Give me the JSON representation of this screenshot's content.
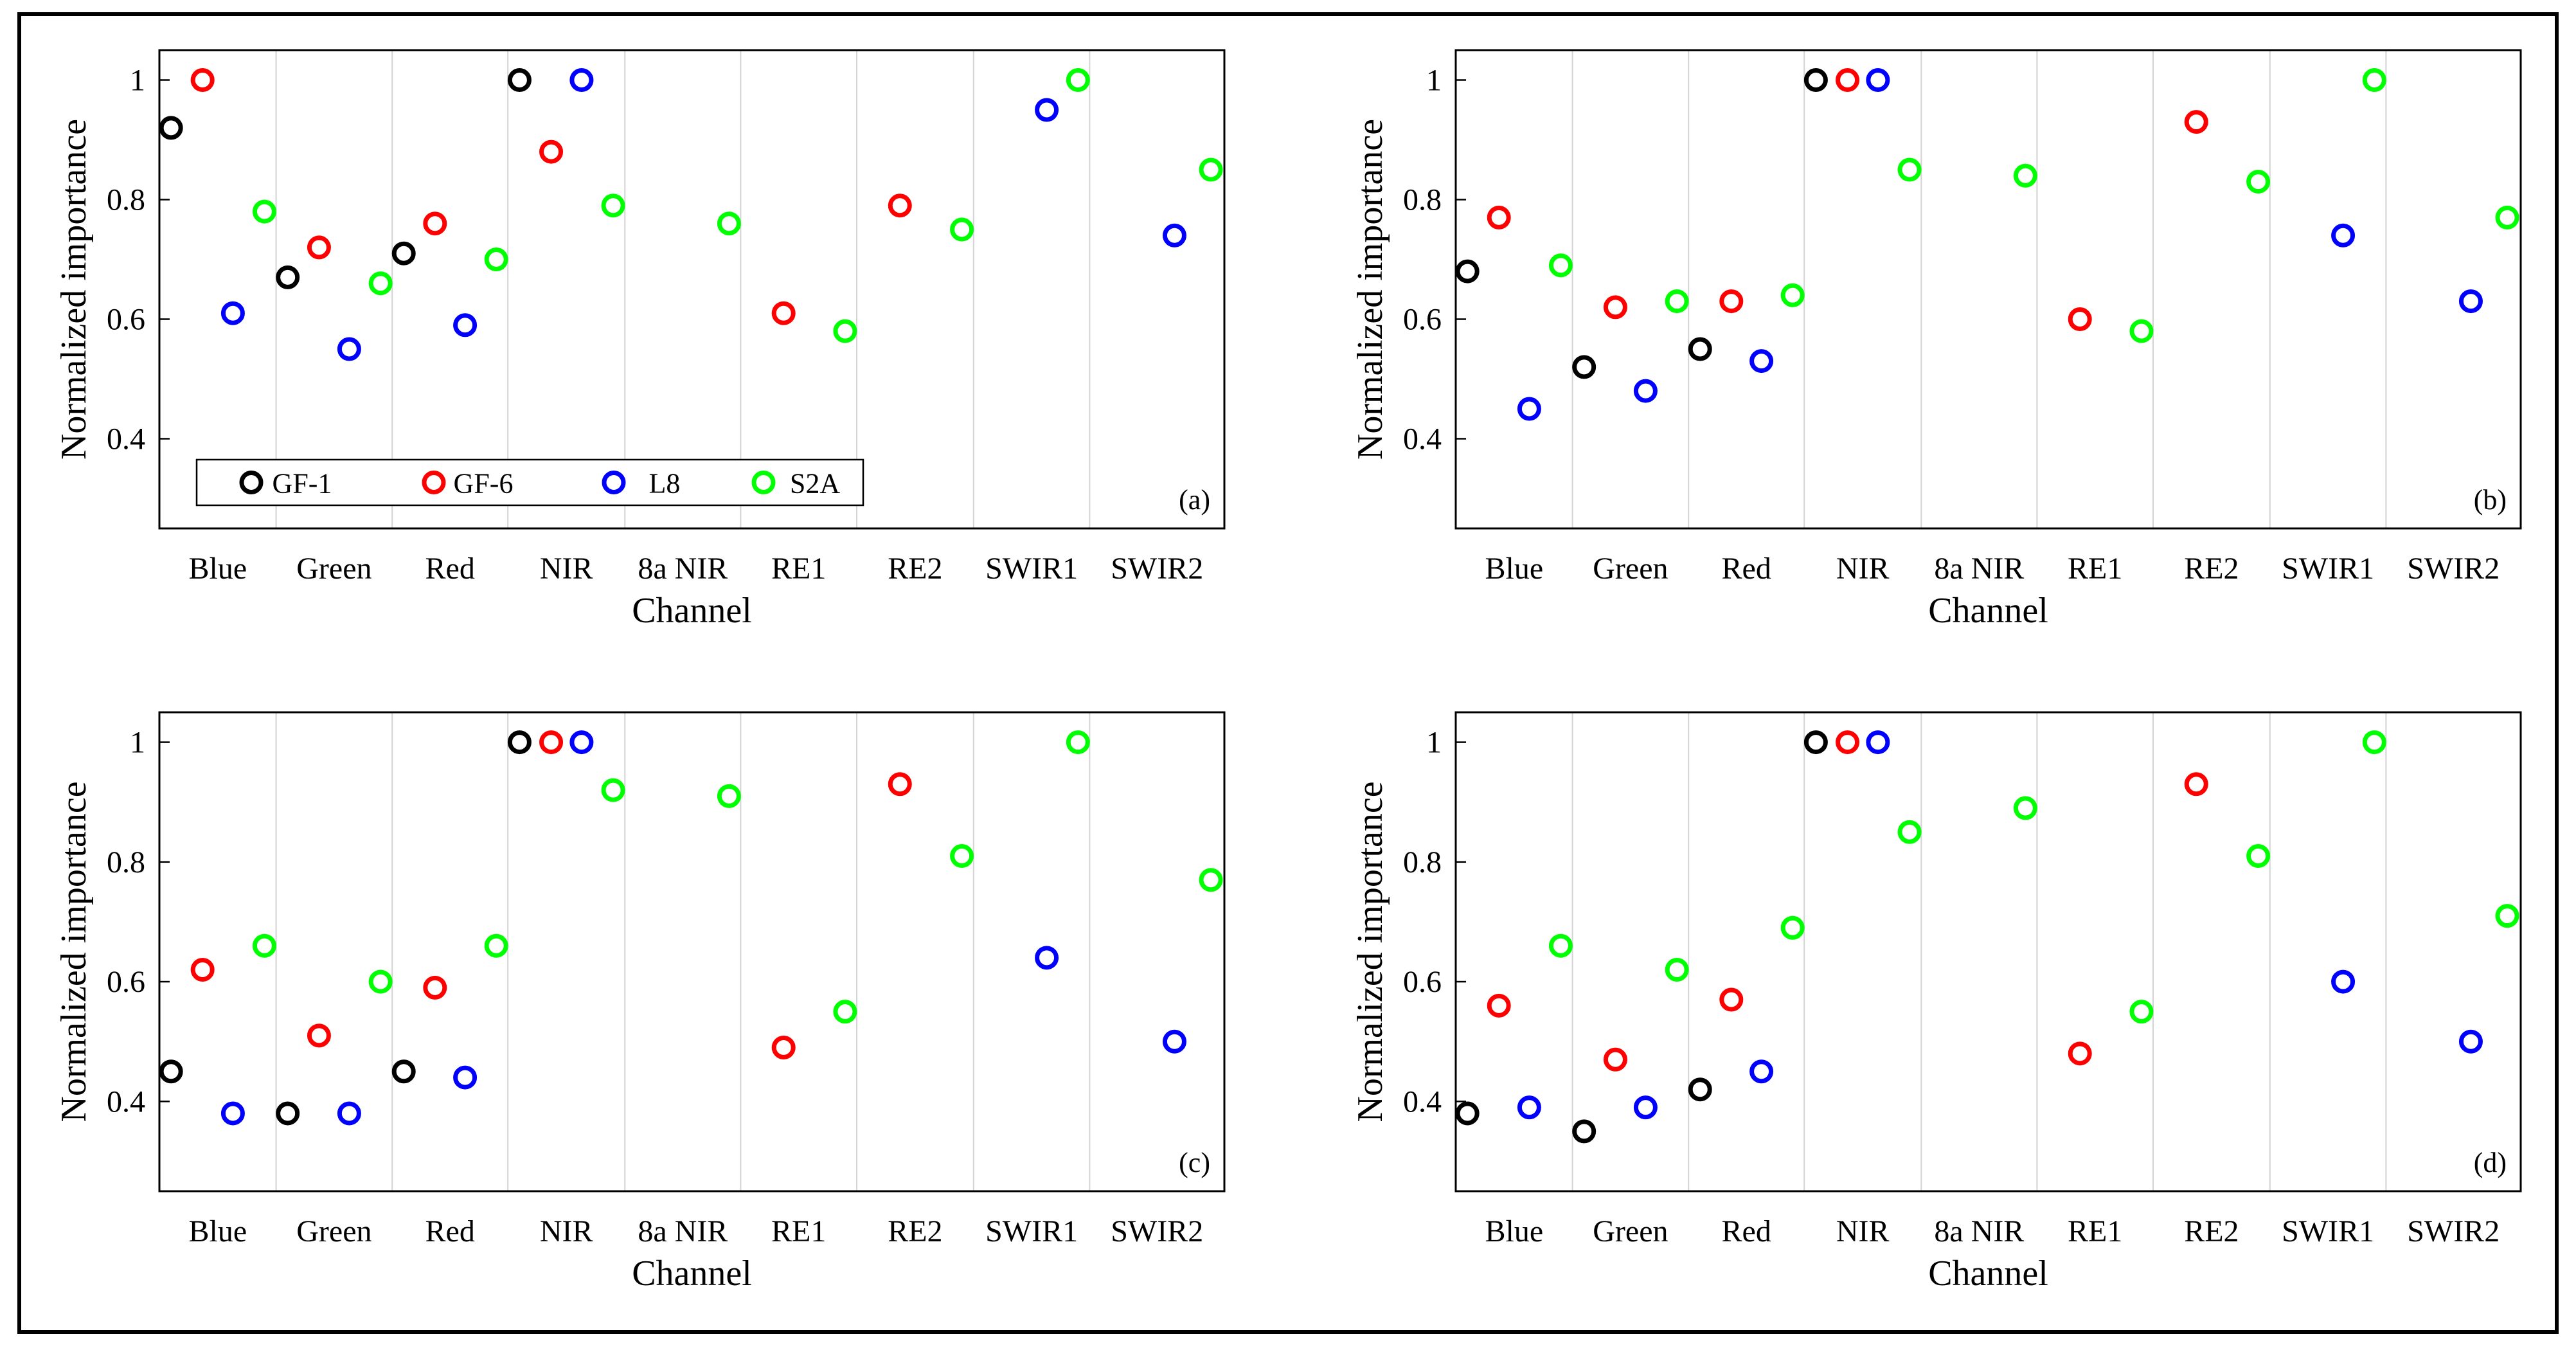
{
  "figure": {
    "frame_color": "#000000",
    "background": "#ffffff"
  },
  "series_styles": [
    {
      "name": "GF-1",
      "color": "#000000"
    },
    {
      "name": "GF-6",
      "color": "#ff0000"
    },
    {
      "name": "L8",
      "color": "#0000ff"
    },
    {
      "name": "S2A",
      "color": "#00ff00"
    }
  ],
  "chart_data": [
    {
      "type": "scatter",
      "panel": "(a)",
      "xlabel": "Channel",
      "ylabel": "Normalized importance",
      "categories": [
        "Blue",
        "Green",
        "Red",
        "NIR",
        "8a NIR",
        "RE1",
        "RE2",
        "SWIR1",
        "SWIR2"
      ],
      "ylim": [
        0.25,
        1.05
      ],
      "yticks": [
        0.4,
        0.6,
        0.8,
        1
      ],
      "legend": true,
      "series": [
        {
          "name": "GF-1",
          "values": [
            0.92,
            0.67,
            0.71,
            1.0,
            null,
            null,
            null,
            null,
            null
          ]
        },
        {
          "name": "GF-6",
          "values": [
            1.0,
            0.72,
            0.76,
            0.88,
            null,
            0.61,
            0.79,
            null,
            null
          ]
        },
        {
          "name": "L8",
          "values": [
            0.61,
            0.55,
            0.59,
            1.0,
            null,
            null,
            null,
            0.95,
            0.74
          ]
        },
        {
          "name": "S2A",
          "values": [
            0.78,
            0.66,
            0.7,
            0.79,
            0.76,
            0.58,
            0.75,
            1.0,
            0.85
          ]
        }
      ]
    },
    {
      "type": "scatter",
      "panel": "(b)",
      "xlabel": "Channel",
      "ylabel": "Normalized importance",
      "categories": [
        "Blue",
        "Green",
        "Red",
        "NIR",
        "8a NIR",
        "RE1",
        "RE2",
        "SWIR1",
        "SWIR2"
      ],
      "ylim": [
        0.25,
        1.05
      ],
      "yticks": [
        0.4,
        0.6,
        0.8,
        1
      ],
      "legend": false,
      "series": [
        {
          "name": "GF-1",
          "values": [
            0.68,
            0.52,
            0.55,
            1.0,
            null,
            null,
            null,
            null,
            null
          ]
        },
        {
          "name": "GF-6",
          "values": [
            0.77,
            0.62,
            0.63,
            1.0,
            null,
            0.6,
            0.93,
            null,
            null
          ]
        },
        {
          "name": "L8",
          "values": [
            0.45,
            0.48,
            0.53,
            1.0,
            null,
            null,
            null,
            0.74,
            0.63
          ]
        },
        {
          "name": "S2A",
          "values": [
            0.69,
            0.63,
            0.64,
            0.85,
            0.84,
            0.58,
            0.83,
            1.0,
            0.77
          ]
        }
      ]
    },
    {
      "type": "scatter",
      "panel": "(c)",
      "xlabel": "Channel",
      "ylabel": "Normalized importance",
      "categories": [
        "Blue",
        "Green",
        "Red",
        "NIR",
        "8a NIR",
        "RE1",
        "RE2",
        "SWIR1",
        "SWIR2"
      ],
      "ylim": [
        0.25,
        1.05
      ],
      "yticks": [
        0.4,
        0.6,
        0.8,
        1
      ],
      "legend": false,
      "series": [
        {
          "name": "GF-1",
          "values": [
            0.45,
            0.38,
            0.45,
            1.0,
            null,
            null,
            null,
            null,
            null
          ]
        },
        {
          "name": "GF-6",
          "values": [
            0.62,
            0.51,
            0.59,
            1.0,
            null,
            0.49,
            0.93,
            null,
            null
          ]
        },
        {
          "name": "L8",
          "values": [
            0.38,
            0.38,
            0.44,
            1.0,
            null,
            null,
            null,
            0.64,
            0.5
          ]
        },
        {
          "name": "S2A",
          "values": [
            0.66,
            0.6,
            0.66,
            0.92,
            0.91,
            0.55,
            0.81,
            1.0,
            0.77
          ]
        }
      ]
    },
    {
      "type": "scatter",
      "panel": "(d)",
      "xlabel": "Channel",
      "ylabel": "Normalized importance",
      "categories": [
        "Blue",
        "Green",
        "Red",
        "NIR",
        "8a NIR",
        "RE1",
        "RE2",
        "SWIR1",
        "SWIR2"
      ],
      "ylim": [
        0.25,
        1.05
      ],
      "yticks": [
        0.4,
        0.6,
        0.8,
        1
      ],
      "legend": false,
      "series": [
        {
          "name": "GF-1",
          "values": [
            0.38,
            0.35,
            0.42,
            1.0,
            null,
            null,
            null,
            null,
            null
          ]
        },
        {
          "name": "GF-6",
          "values": [
            0.56,
            0.47,
            0.57,
            1.0,
            null,
            0.48,
            0.93,
            null,
            null
          ]
        },
        {
          "name": "L8",
          "values": [
            0.39,
            0.39,
            0.45,
            1.0,
            null,
            null,
            null,
            0.6,
            0.5
          ]
        },
        {
          "name": "S2A",
          "values": [
            0.66,
            0.62,
            0.69,
            0.85,
            0.89,
            0.55,
            0.81,
            1.0,
            0.71
          ]
        }
      ]
    }
  ]
}
